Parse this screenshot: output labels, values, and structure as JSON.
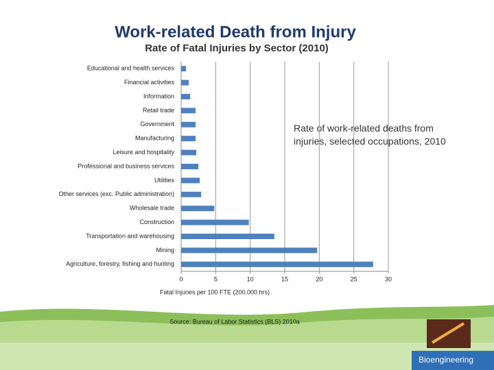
{
  "chart_data": {
    "type": "hbar",
    "title": "Work-related Death from Injury",
    "subtitle": "Rate of Fatal Injuries by Sector (2010)",
    "annotation": "Rate of work-related deaths from injuries, selected occupations, 2010",
    "x_label": "Fatal Injuries per 100 FTE (200,000 hrs)",
    "source": "Source: Bureau of Labor Statistics (BLS) 2010a",
    "footer": "Bioengineering",
    "categories": [
      "Educational and health services",
      "Financial activities",
      "Information",
      "Retail trade",
      "Government",
      "Manufacturing",
      "Leisure and hospitality",
      "Professional and business services",
      "Utilities",
      "Other services (exc. Public administration)",
      "Wholesale trade",
      "Construction",
      "Transportation and warehousing",
      "Mining",
      "Agriculture, forestry, fishing and hunting"
    ],
    "values": [
      0.7,
      1.1,
      1.3,
      2.1,
      2.1,
      2.1,
      2.2,
      2.5,
      2.7,
      2.9,
      4.8,
      9.8,
      13.5,
      19.7,
      27.8
    ],
    "color": "#4f81bd",
    "xlim": [
      0,
      30
    ],
    "xticks": [
      0,
      5,
      10,
      15,
      20,
      25,
      30
    ],
    "grid": true
  }
}
